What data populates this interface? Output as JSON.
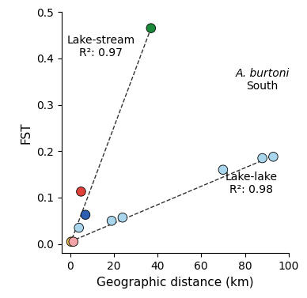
{
  "chart_data": {
    "type": "scatter",
    "x_label": "Geographic distance (km)",
    "y_label": "FST",
    "xlim": [
      -4,
      100
    ],
    "xticks": [
      0,
      20,
      40,
      60,
      80,
      100
    ],
    "ylim": [
      -0.02,
      0.5
    ],
    "yticks": [
      {
        "value": 0.0,
        "label": "0.0"
      },
      0.1,
      0.2,
      0.3,
      0.4,
      0.5
    ],
    "grid": false,
    "series": [
      {
        "type": "line",
        "line_style": "dashed",
        "color": "#333333",
        "x": [
          0,
          37
        ],
        "values": [
          0.0,
          0.465
        ]
      },
      {
        "type": "line",
        "line_style": "dashed",
        "color": "#333333",
        "x": [
          0,
          93
        ],
        "values": [
          0.005,
          0.19
        ]
      },
      {
        "type": "scatter",
        "marker": "circle",
        "x": [
          0.5,
          1.5,
          4,
          19,
          24,
          70,
          88,
          93,
          7,
          5,
          37
        ],
        "values": [
          0.005,
          0.005,
          0.035,
          0.05,
          0.057,
          0.16,
          0.185,
          0.188,
          0.063,
          0.113,
          0.465
        ],
        "colors": [
          "#f0c94a",
          "#f4a3a8",
          "#a9d6ec",
          "#a9d6ec",
          "#a9d6ec",
          "#a9d6ec",
          "#a9d6ec",
          "#a9d6ec",
          "#2f5fb0",
          "#e0413a",
          "#1a8a3a"
        ]
      }
    ],
    "annotations": [
      {
        "text": "Lake-stream\nR²: 0.97"
      },
      {
        "text": "Lake-lake\nR²: 0.98"
      },
      {
        "text": "A. burtoni"
      },
      {
        "text": "South"
      }
    ]
  }
}
